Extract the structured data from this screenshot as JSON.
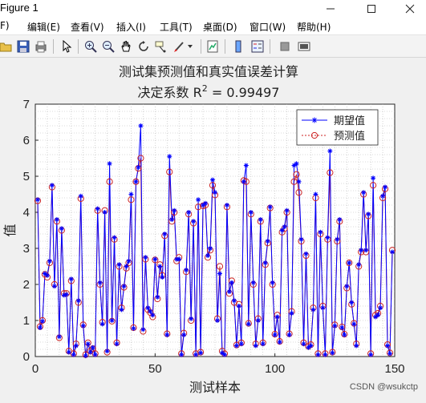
{
  "window": {
    "title": "Figure 1",
    "controls": [
      "minimize",
      "maximize",
      "close"
    ]
  },
  "menu": {
    "items": [
      "F)",
      "编辑(E)",
      "查看(V)",
      "插入(I)",
      "工具(T)",
      "桌面(D)",
      "窗口(W)",
      "帮助(H)"
    ]
  },
  "toolbar": {
    "icons": [
      "open-icon",
      "save-icon",
      "print-icon",
      "pointer-icon",
      "zoom-in-icon",
      "zoom-out-icon",
      "pan-icon",
      "rotate-icon",
      "data-cursor-icon",
      "brush-icon",
      "brush-dropdown-icon",
      "link-plot-icon",
      "colorbar-icon",
      "legend-icon",
      "hide-plot-tools-icon",
      "show-plot-tools-icon"
    ]
  },
  "colors": {
    "line": "#0000ff",
    "pred": "#cc2222",
    "axes_bg": "#ffffff",
    "figure_bg": "#f0f0f0"
  },
  "chart_data": {
    "type": "line",
    "title_line1": "测试集预测值和真实值误差计算",
    "title_line2_prefix": "决定系数 R",
    "title_line2_sup": "2",
    "title_line2_suffix": " = 0.99497",
    "xlabel": "测试样本",
    "ylabel": "值",
    "xlim": [
      0,
      150
    ],
    "ylim": [
      0,
      7
    ],
    "xticks": [
      "0",
      "50",
      "100",
      "150"
    ],
    "yticks": [
      "0",
      "1",
      "2",
      "3",
      "4",
      "5",
      "6",
      "7"
    ],
    "grid": "minor-dotted",
    "legend": {
      "placement": "top-right",
      "entries": [
        "期望值",
        "预测值"
      ]
    },
    "series": [
      {
        "name": "期望值",
        "marker": "star",
        "values": [
          4.35,
          0.8,
          0.98,
          2.3,
          2.25,
          2.65,
          4.75,
          1.95,
          3.8,
          0.55,
          3.55,
          1.7,
          1.72,
          0.12,
          2.15,
          0.05,
          0.3,
          1.55,
          4.45,
          0.85,
          0.02,
          0.35,
          0.12,
          0.25,
          0.05,
          4.1,
          2.05,
          0.9,
          4.0,
          0.15,
          5.35,
          1.0,
          3.3,
          0.35,
          2.55,
          1.3,
          1.95,
          2.5,
          2.65,
          4.5,
          0.78,
          4.85,
          5.25,
          6.4,
          0.75,
          2.75,
          1.35,
          1.25,
          1.15,
          2.7,
          1.65,
          2.5,
          2.2,
          3.4,
          0.6,
          5.55,
          3.8,
          4.05,
          2.7,
          2.7,
          0.05,
          0.6,
          2.4,
          4.0,
          1.05,
          3.75,
          0.05,
          4.35,
          0.1,
          4.2,
          4.25,
          2.8,
          3.0,
          4.9,
          4.55,
          1.0,
          2.3,
          0.1,
          0.05,
          4.2,
          1.8,
          2.05,
          1.55,
          0.3,
          1.4,
          0.35,
          4.85,
          5.3,
          0.9,
          4.0,
          2.05,
          0.3,
          1.0,
          3.8,
          0.35,
          2.6,
          3.2,
          4.15,
          2.05,
          0.6,
          1.1,
          0.4,
          3.5,
          3.6,
          4.05,
          0.6,
          1.2,
          5.3,
          5.35,
          4.85,
          3.25,
          0.35,
          2.85,
          0.25,
          0.3,
          1.3,
          4.5,
          0.05,
          3.45,
          1.35,
          0.05,
          3.3,
          5.7,
          0.1,
          0.85,
          3.25,
          3.8,
          0.8,
          0.6,
          1.95,
          2.6,
          1.5,
          0.9,
          0.3,
          2.55,
          2.95,
          4.55,
          2.95,
          3.95,
          0.05,
          4.95,
          1.1,
          1.15,
          1.35,
          4.45,
          4.7,
          0.3,
          0.08,
          2.9
        ]
      },
      {
        "name": "预测值",
        "marker": "circle",
        "values": [
          4.32,
          0.83,
          1.0,
          2.28,
          2.2,
          2.6,
          4.7,
          2.0,
          3.75,
          0.52,
          3.5,
          1.75,
          1.75,
          0.15,
          2.1,
          0.08,
          0.35,
          1.5,
          4.38,
          0.88,
          0.05,
          0.38,
          0.15,
          0.22,
          0.08,
          4.05,
          2.0,
          0.95,
          4.05,
          0.12,
          4.85,
          0.98,
          3.25,
          0.38,
          2.5,
          1.35,
          1.92,
          2.45,
          2.6,
          4.35,
          0.8,
          4.85,
          5.22,
          5.5,
          0.7,
          2.7,
          1.3,
          1.22,
          1.1,
          2.68,
          1.6,
          2.55,
          2.25,
          3.35,
          0.63,
          5.12,
          3.75,
          4.0,
          2.65,
          2.75,
          0.08,
          0.65,
          2.35,
          3.95,
          1.0,
          3.7,
          0.08,
          4.15,
          0.12,
          4.18,
          4.2,
          2.75,
          2.95,
          4.75,
          4.48,
          1.05,
          2.5,
          0.15,
          0.08,
          4.15,
          1.75,
          2.1,
          1.5,
          0.32,
          1.45,
          0.38,
          4.88,
          4.85,
          0.92,
          3.95,
          2.0,
          0.35,
          1.05,
          3.75,
          0.38,
          2.55,
          3.15,
          4.12,
          2.0,
          0.62,
          1.15,
          0.42,
          3.45,
          3.55,
          4.0,
          0.63,
          1.25,
          4.85,
          5.05,
          4.55,
          3.2,
          0.38,
          2.8,
          0.28,
          0.33,
          1.35,
          4.4,
          0.08,
          3.4,
          1.4,
          0.08,
          3.25,
          5.1,
          0.12,
          0.88,
          3.2,
          3.75,
          0.82,
          0.62,
          1.9,
          2.6,
          1.45,
          0.92,
          0.35,
          2.5,
          2.9,
          4.5,
          2.9,
          3.9,
          0.08,
          4.75,
          1.15,
          1.2,
          1.4,
          4.4,
          4.65,
          0.33,
          0.1,
          2.95
        ]
      }
    ]
  },
  "footer": {
    "watermark": "CSDN @wsukctp"
  }
}
